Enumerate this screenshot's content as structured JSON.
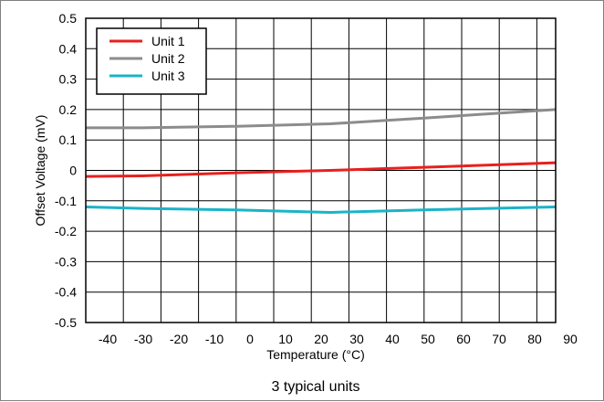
{
  "chart_data": {
    "type": "line",
    "title": "",
    "xlabel": "Temperature (°C)",
    "ylabel": "Offset Voltage (mV)",
    "caption": "3 typical units",
    "xlim": [
      -40,
      90
    ],
    "ylim": [
      -0.5,
      0.5
    ],
    "xticks": [
      -40,
      -30,
      -20,
      -10,
      0,
      10,
      20,
      30,
      40,
      50,
      60,
      70,
      80,
      90
    ],
    "yticks": [
      0.5,
      0.4,
      0.3,
      0.2,
      0.1,
      0,
      -0.1,
      -0.2,
      -0.3,
      -0.4,
      -0.5
    ],
    "grid": true,
    "legend_position": "top-left",
    "series": [
      {
        "name": "Unit 1",
        "color": "#e8201e",
        "x": [
          -40,
          -25,
          0,
          25,
          50,
          85
        ],
        "y": [
          -0.02,
          -0.018,
          -0.008,
          0.0,
          0.01,
          0.025
        ]
      },
      {
        "name": "Unit 2",
        "color": "#8c8c8c",
        "x": [
          -40,
          -25,
          0,
          25,
          50,
          85
        ],
        "y": [
          0.14,
          0.14,
          0.145,
          0.153,
          0.172,
          0.2
        ]
      },
      {
        "name": "Unit 3",
        "color": "#1ab4c8",
        "x": [
          -40,
          -25,
          0,
          25,
          50,
          85
        ],
        "y": [
          -0.12,
          -0.125,
          -0.13,
          -0.138,
          -0.13,
          -0.12
        ]
      }
    ]
  }
}
